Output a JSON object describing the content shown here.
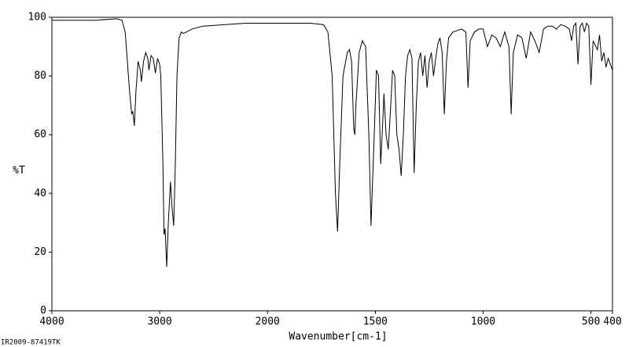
{
  "chart_data": {
    "type": "line",
    "ylabel": "%T",
    "xlabel": "Wavenumber[cm-1]",
    "footer": "IR2009-87419TK",
    "xlim": [
      4000,
      400
    ],
    "ylim": [
      0,
      100
    ],
    "xticks": [
      4000,
      3000,
      2000,
      1500,
      1000,
      500,
      400
    ],
    "yticks": [
      0,
      20,
      40,
      60,
      80,
      100
    ],
    "xscale_break": 2000,
    "xscale_factor_below_break": 2,
    "series": [
      {
        "name": "spectrum",
        "color": "#000000",
        "x": [
          4000,
          3600,
          3400,
          3350,
          3320,
          3300,
          3280,
          3260,
          3250,
          3235,
          3220,
          3200,
          3180,
          3170,
          3150,
          3130,
          3110,
          3100,
          3080,
          3060,
          3040,
          3020,
          3000,
          2990,
          2970,
          2960,
          2950,
          2935,
          2920,
          2900,
          2885,
          2870,
          2855,
          2840,
          2820,
          2800,
          2780,
          2700,
          2600,
          2400,
          2200,
          2000,
          1800,
          1740,
          1720,
          1700,
          1685,
          1675,
          1665,
          1650,
          1630,
          1620,
          1610,
          1600,
          1595,
          1590,
          1575,
          1560,
          1545,
          1530,
          1520,
          1505,
          1495,
          1485,
          1475,
          1465,
          1460,
          1450,
          1440,
          1430,
          1420,
          1410,
          1400,
          1390,
          1380,
          1370,
          1360,
          1350,
          1340,
          1330,
          1320,
          1310,
          1300,
          1290,
          1280,
          1270,
          1260,
          1250,
          1240,
          1230,
          1220,
          1210,
          1200,
          1190,
          1180,
          1170,
          1160,
          1140,
          1120,
          1100,
          1080,
          1070,
          1060,
          1040,
          1020,
          1000,
          980,
          960,
          940,
          920,
          900,
          880,
          870,
          860,
          840,
          820,
          800,
          780,
          760,
          740,
          720,
          700,
          680,
          660,
          640,
          620,
          600,
          590,
          580,
          570,
          560,
          550,
          540,
          530,
          520,
          510,
          500,
          490,
          470,
          460,
          450,
          440,
          430,
          420,
          410,
          400
        ],
        "values": [
          99,
          99,
          99.5,
          99,
          95,
          85,
          75,
          67,
          68,
          63,
          75,
          85,
          82,
          78,
          85,
          88,
          86,
          82,
          87,
          86,
          81,
          86,
          84,
          80,
          50,
          26,
          28,
          15,
          30,
          44,
          35,
          29,
          50,
          80,
          93,
          95,
          94.5,
          96,
          97,
          97.5,
          98,
          98,
          98,
          97.5,
          95,
          80,
          40,
          27,
          50,
          80,
          88,
          89,
          85,
          62,
          60,
          70,
          88,
          92,
          90,
          60,
          29,
          60,
          82,
          80,
          50,
          65,
          74,
          60,
          55,
          68,
          82,
          80,
          60,
          55,
          46,
          60,
          80,
          87,
          89,
          86,
          47,
          70,
          85,
          88,
          80,
          87,
          76,
          85,
          88,
          80,
          86,
          91,
          93,
          88,
          67,
          85,
          93,
          95,
          95.5,
          96,
          95,
          76,
          92,
          95,
          96,
          96,
          90,
          94,
          93,
          90,
          95,
          90,
          67,
          88,
          94,
          93,
          86,
          95,
          92,
          88,
          96,
          97,
          97,
          96,
          97.5,
          97,
          96,
          92,
          97,
          98,
          84,
          97,
          98,
          95,
          98,
          97,
          77,
          92,
          89,
          94,
          85,
          88,
          83,
          86,
          84,
          82
        ]
      }
    ]
  }
}
